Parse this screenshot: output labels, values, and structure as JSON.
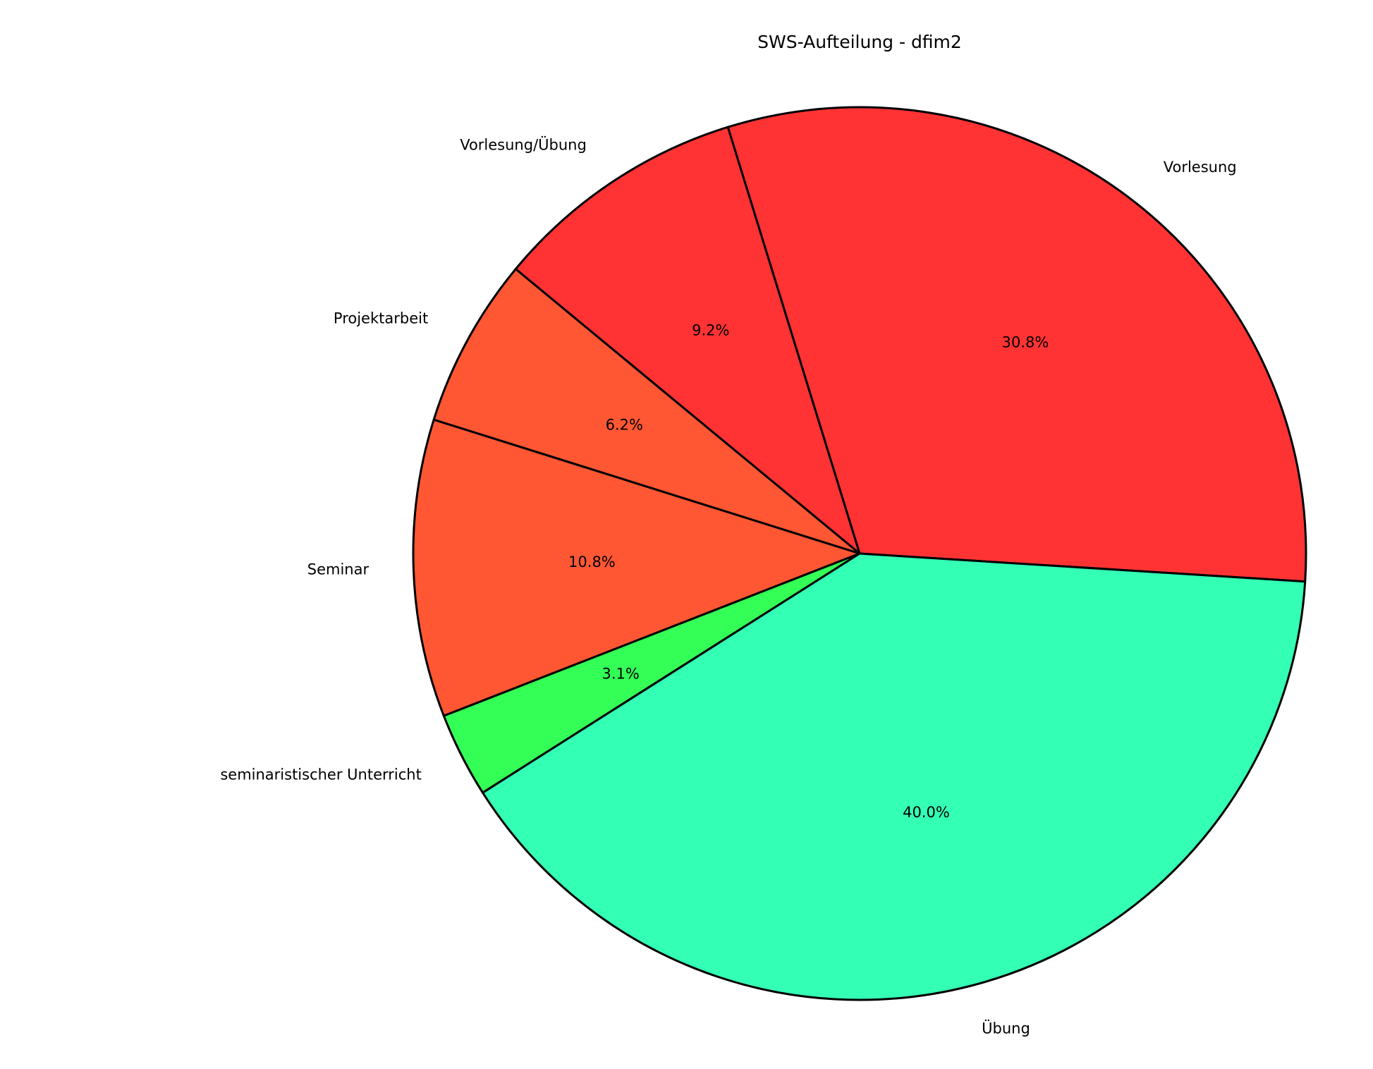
{
  "chart_data": {
    "type": "pie",
    "title": "SWS-Aufteilung - dfim2",
    "start_angle_deg": -3.6,
    "direction": "counterclockwise",
    "slices": [
      {
        "label": "Vorlesung",
        "value": 10,
        "pct_label": "30.8%",
        "color": "#FF3333"
      },
      {
        "label": "Vorlesung/Übung",
        "value": 3,
        "pct_label": "9.2%",
        "color": "#FF3333"
      },
      {
        "label": "Projektarbeit",
        "value": 2,
        "pct_label": "6.2%",
        "color": "#FF5733"
      },
      {
        "label": "Seminar",
        "value": 3.5,
        "pct_label": "10.8%",
        "color": "#FF5733"
      },
      {
        "label": "seminaristischer Unterricht",
        "value": 1,
        "pct_label": "3.1%",
        "color": "#33FF57"
      },
      {
        "label": "Übung",
        "value": 13,
        "pct_label": "40.0%",
        "color": "#33FFB5"
      }
    ]
  }
}
